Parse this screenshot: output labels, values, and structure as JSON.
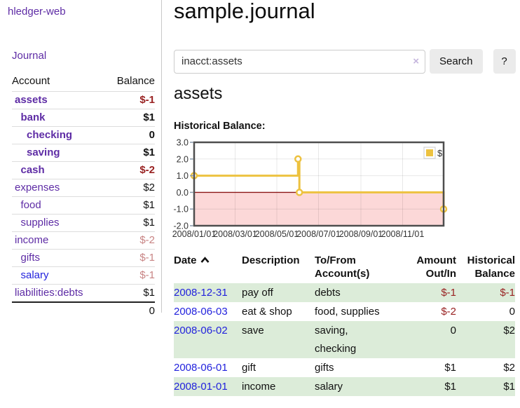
{
  "colors": {
    "link_purple": "#5e2ca5",
    "link_blue": "#2222dd",
    "negative": "#992222",
    "negative_dim": "#c88484",
    "row_stripe_green": "#dcecd9",
    "chart_line_gold": "#edc240",
    "chart_negative_pink": "#fcd8d8",
    "zero_line_maroon": "#8b1414"
  },
  "sidebar": {
    "app_title": "hledger-web",
    "journal_link": "Journal",
    "accounts": {
      "header_account": "Account",
      "header_balance": "Balance",
      "rows": [
        {
          "name": "assets",
          "balance": "$-1",
          "level": 1,
          "bold": true,
          "name_color": "purple",
          "balance_color": "negative",
          "balance_bold": true
        },
        {
          "name": "bank",
          "balance": "$1",
          "level": 2,
          "bold": true,
          "name_color": "purple",
          "balance_color": "black",
          "balance_bold": true
        },
        {
          "name": "checking",
          "balance": "0",
          "level": 3,
          "bold": true,
          "name_color": "purple",
          "balance_color": "black",
          "balance_bold": true
        },
        {
          "name": "saving",
          "balance": "$1",
          "level": 3,
          "bold": true,
          "name_color": "purple",
          "balance_color": "black",
          "balance_bold": true
        },
        {
          "name": "cash",
          "balance": "$-2",
          "level": 2,
          "bold": true,
          "name_color": "purple",
          "balance_color": "negative",
          "balance_bold": true
        },
        {
          "name": "expenses",
          "balance": "$2",
          "level": 1,
          "bold": false,
          "name_color": "purple",
          "balance_color": "black",
          "balance_bold": false
        },
        {
          "name": "food",
          "balance": "$1",
          "level": 2,
          "bold": false,
          "name_color": "purple",
          "balance_color": "black",
          "balance_bold": false
        },
        {
          "name": "supplies",
          "balance": "$1",
          "level": 2,
          "bold": false,
          "name_color": "purple",
          "balance_color": "black",
          "balance_bold": false
        },
        {
          "name": "income",
          "balance": "$-2",
          "level": 1,
          "bold": false,
          "name_color": "purple",
          "balance_color": "negative-dim",
          "balance_bold": false
        },
        {
          "name": "gifts",
          "balance": "$-1",
          "level": 2,
          "bold": false,
          "name_color": "purple",
          "balance_color": "negative-dim",
          "balance_bold": false
        },
        {
          "name": "salary",
          "balance": "$-1",
          "level": 2,
          "bold": false,
          "name_color": "blue",
          "balance_color": "negative-dim",
          "balance_bold": false
        },
        {
          "name": "liabilities:debts",
          "balance": "$1",
          "level": 1,
          "bold": false,
          "name_color": "purple",
          "balance_color": "black",
          "balance_bold": false
        }
      ],
      "total": "0"
    }
  },
  "main": {
    "title": "sample.journal",
    "search": {
      "value": "inacct:assets",
      "clear_icon": "×",
      "button_label": "Search",
      "help_label": "?"
    },
    "account_heading": "assets",
    "chart_title": "Historical Balance:"
  },
  "chart_data": {
    "type": "line",
    "step": true,
    "series": [
      {
        "name": "$",
        "color": "#edc240",
        "points": [
          {
            "date": "2008-01-01",
            "value": 1
          },
          {
            "date": "2008-06-01",
            "value": 2
          },
          {
            "date": "2008-06-03",
            "value": 0
          },
          {
            "date": "2008-12-31",
            "value": -1
          }
        ]
      }
    ],
    "xlim": [
      "2008-01-01",
      "2008-12-31"
    ],
    "ylim": [
      -2,
      3
    ],
    "x_ticks": [
      "2008/01/01",
      "2008/03/01",
      "2008/05/01",
      "2008/07/01",
      "2008/09/01",
      "2008/11/01"
    ],
    "y_ticks": [
      3.0,
      2.0,
      1.0,
      0.0,
      -1.0,
      -2.0
    ],
    "grid": true,
    "legend": {
      "label": "$",
      "position": "top-right"
    },
    "negative_region_color": "#fcd8d8",
    "zero_line_color": "#8b1414"
  },
  "transactions": {
    "headers": {
      "date": "Date",
      "description": "Description",
      "accounts": "To/From Account(s)",
      "amount": "Amount Out/In",
      "balance": "Historical Balance"
    },
    "rows": [
      {
        "date": "2008-12-31",
        "description": "pay off",
        "accounts": "debts",
        "amount": "$-1",
        "amount_color": "negative",
        "balance": "$-1",
        "balance_color": "negative"
      },
      {
        "date": "2008-06-03",
        "description": "eat & shop",
        "accounts": "food, supplies",
        "amount": "$-2",
        "amount_color": "negative",
        "balance": "0",
        "balance_color": "black"
      },
      {
        "date": "2008-06-02",
        "description": "save",
        "accounts": "saving,\nchecking",
        "amount": "0",
        "amount_color": "black",
        "balance": "$2",
        "balance_color": "black"
      },
      {
        "date": "2008-06-01",
        "description": "gift",
        "accounts": "gifts",
        "amount": "$1",
        "amount_color": "black",
        "balance": "$2",
        "balance_color": "black"
      },
      {
        "date": "2008-01-01",
        "description": "income",
        "accounts": "salary",
        "amount": "$1",
        "amount_color": "black",
        "balance": "$1",
        "balance_color": "black"
      }
    ]
  }
}
